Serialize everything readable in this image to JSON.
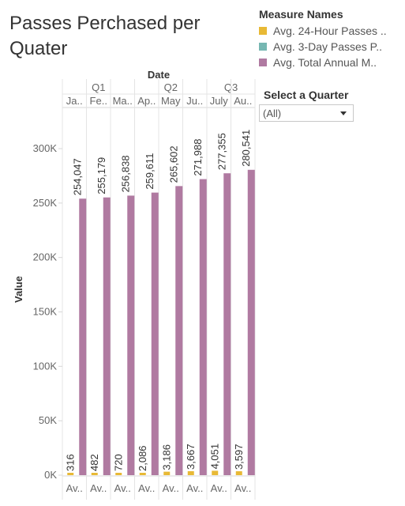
{
  "title": "Passes Perchased per Quater",
  "legend": {
    "title": "Measure Names",
    "items": [
      {
        "label": "Avg. 24-Hour Passes ..",
        "color": "#e8b935"
      },
      {
        "label": "Avg. 3-Day Passes P..",
        "color": "#76b7b2"
      },
      {
        "label": "Avg. Total Annual M..",
        "color": "#b07aa1"
      }
    ]
  },
  "filter": {
    "title": "Select a Quarter",
    "value": "(All)"
  },
  "chart_data": {
    "type": "bar",
    "column_header": "Date",
    "quarters": [
      {
        "label": "Q1",
        "months": 3
      },
      {
        "label": "Q2",
        "months": 3
      },
      {
        "label": "Q3",
        "months": 2
      }
    ],
    "categories": [
      "Ja..",
      "Fe..",
      "Ma..",
      "Ap..",
      "May",
      "Ju..",
      "July",
      "Au.."
    ],
    "bottom_labels": [
      "Av..",
      "Av..",
      "Av..",
      "Av..",
      "Av..",
      "Av..",
      "Av..",
      "Av.."
    ],
    "ylabel": "Value",
    "ylim": [
      0,
      320000
    ],
    "yticks": [
      0,
      50000,
      100000,
      150000,
      200000,
      250000,
      300000
    ],
    "ytick_labels": [
      "0K",
      "50K",
      "100K",
      "150K",
      "200K",
      "250K",
      "300K"
    ],
    "series": [
      {
        "name": "Avg. 24-Hour Passes ..",
        "color": "#e8b935",
        "values": [
          316,
          482,
          720,
          2086,
          3186,
          3667,
          4051,
          3597
        ],
        "labels": [
          "316",
          "482",
          "720",
          "2,086",
          "3,186",
          "3,667",
          "4,051",
          "3,597"
        ]
      },
      {
        "name": "Avg. 3-Day Passes P..",
        "color": "#76b7b2",
        "values": [
          0,
          0,
          0,
          0,
          0,
          0,
          0,
          0
        ],
        "labels": [
          "",
          "",
          "",
          "",
          "",
          "",
          "",
          ""
        ]
      },
      {
        "name": "Avg. Total Annual M..",
        "color": "#b07aa1",
        "values": [
          254047,
          255179,
          256838,
          259611,
          265602,
          271988,
          277355,
          280541
        ],
        "labels": [
          "254,047",
          "255,179",
          "256,838",
          "259,611",
          "265,602",
          "271,988",
          "277,355",
          "280,541"
        ]
      }
    ]
  }
}
